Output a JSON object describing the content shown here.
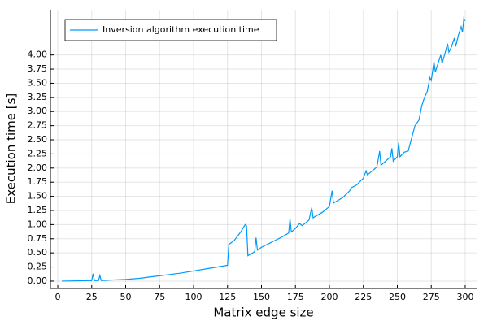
{
  "chart_data": {
    "type": "line",
    "xlabel": "Matrix edge size",
    "ylabel": "Execution time [s]",
    "xlim": [
      -5.4,
      309
    ],
    "ylim": [
      -0.13,
      4.8
    ],
    "xticks": [
      0,
      25,
      50,
      75,
      100,
      125,
      150,
      175,
      200,
      225,
      250,
      275,
      300
    ],
    "yticks": [
      {
        "value": 0,
        "label": "0.00"
      },
      {
        "value": 0.25,
        "label": "0.25"
      },
      {
        "value": 0.5,
        "label": "0.50"
      },
      {
        "value": 0.75,
        "label": "0.75"
      },
      {
        "value": 1,
        "label": "1.00"
      },
      {
        "value": 1.25,
        "label": "1.25"
      },
      {
        "value": 1.5,
        "label": "1.50"
      },
      {
        "value": 1.75,
        "label": "1.75"
      },
      {
        "value": 2,
        "label": "2.00"
      },
      {
        "value": 2.25,
        "label": "2.25"
      },
      {
        "value": 2.5,
        "label": "2.50"
      },
      {
        "value": 2.75,
        "label": "2.75"
      },
      {
        "value": 3,
        "label": "3.00"
      },
      {
        "value": 3.25,
        "label": "3.25"
      },
      {
        "value": 3.5,
        "label": "3.50"
      },
      {
        "value": 3.75,
        "label": "3.75"
      },
      {
        "value": 4,
        "label": "4.00"
      }
    ],
    "grid": true,
    "legend": "top-left",
    "x": [
      3,
      25,
      26,
      27,
      30,
      31,
      32,
      40,
      50,
      60,
      70,
      80,
      90,
      100,
      110,
      120,
      125,
      126,
      130,
      135,
      138,
      139,
      140,
      145,
      146,
      147,
      150,
      155,
      160,
      165,
      170,
      171,
      172,
      175,
      178,
      180,
      185,
      187,
      188,
      190,
      195,
      200,
      202,
      203,
      210,
      215,
      216,
      220,
      225,
      227,
      228,
      235,
      237,
      238,
      245,
      246,
      247,
      250,
      251,
      252,
      255,
      258,
      260,
      263,
      266,
      268,
      270,
      272,
      274,
      275,
      277,
      278,
      280,
      282,
      283,
      285,
      287,
      288,
      290,
      292,
      293,
      295,
      297,
      298,
      299,
      300
    ],
    "series": [
      {
        "name": "Inversion algorithm execution time",
        "color": "#009af9",
        "values": [
          0,
          0.01,
          0.13,
          0.01,
          0.01,
          0.1,
          0.01,
          0.02,
          0.03,
          0.05,
          0.08,
          0.11,
          0.14,
          0.18,
          0.22,
          0.26,
          0.28,
          0.65,
          0.72,
          0.88,
          1.0,
          0.98,
          0.45,
          0.52,
          0.77,
          0.55,
          0.6,
          0.66,
          0.72,
          0.78,
          0.85,
          1.1,
          0.87,
          0.93,
          1.02,
          0.98,
          1.08,
          1.3,
          1.12,
          1.15,
          1.22,
          1.32,
          1.6,
          1.38,
          1.48,
          1.6,
          1.65,
          1.7,
          1.82,
          1.95,
          1.88,
          2.02,
          2.3,
          2.05,
          2.2,
          2.35,
          2.12,
          2.2,
          2.45,
          2.2,
          2.28,
          2.3,
          2.48,
          2.75,
          2.85,
          3.1,
          3.25,
          3.35,
          3.6,
          3.55,
          3.88,
          3.7,
          3.85,
          4.0,
          3.85,
          4.02,
          4.2,
          4.05,
          4.15,
          4.3,
          4.15,
          4.35,
          4.5,
          4.4,
          4.65,
          4.6
        ]
      }
    ]
  }
}
